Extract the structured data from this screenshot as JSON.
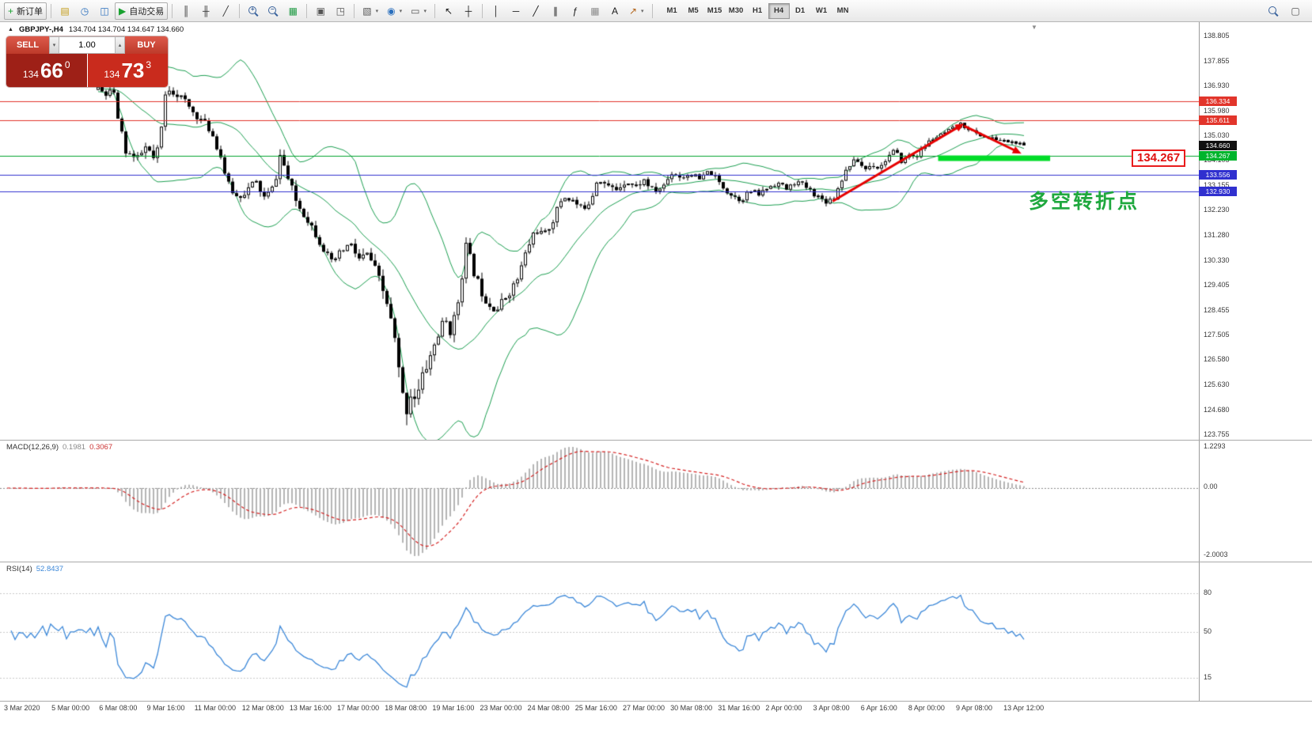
{
  "colors": {
    "resistance_red": "#e2352b",
    "support_blue": "#3030cf",
    "pivot_green": "#00a32c",
    "zone_green": "#00dc28",
    "current_price_tag": "#111111",
    "arrow_red": "#e60000",
    "turning_text_green": "#1fa83e",
    "sell_red_dark": "#9e2017",
    "buy_red_bright": "#c92b1d"
  },
  "toolbar": {
    "items": [
      {
        "name": "new-order-button",
        "type": "labeled",
        "glyph": "+",
        "color": "#18a12f",
        "label": "新订单"
      },
      {
        "type": "sep"
      },
      {
        "name": "profiles-icon",
        "type": "icon",
        "glyph": "▤",
        "color": "#c39b16"
      },
      {
        "name": "market-watch-icon",
        "type": "icon",
        "glyph": "◷",
        "color": "#2a6fbd"
      },
      {
        "name": "data-window-icon",
        "type": "icon",
        "glyph": "◫",
        "color": "#2a6fbd"
      },
      {
        "name": "auto-trading-button",
        "type": "labeled",
        "glyph": "▶",
        "color": "#18a12f",
        "label": "自动交易"
      },
      {
        "type": "sep"
      },
      {
        "name": "bar-chart-icon",
        "type": "icon",
        "glyph": "║",
        "color": "#3a3a3a"
      },
      {
        "name": "candlestick-chart-icon",
        "type": "icon",
        "glyph": "╫",
        "color": "#3a3a3a"
      },
      {
        "name": "line-chart-icon",
        "type": "icon",
        "glyph": "╱",
        "color": "#3a3a3a"
      },
      {
        "type": "sep"
      },
      {
        "name": "zoom-in-button",
        "type": "mag",
        "inner": "+"
      },
      {
        "name": "zoom-out-button",
        "type": "mag",
        "inner": "−"
      },
      {
        "name": "tile-windows-icon",
        "type": "icon",
        "glyph": "▦",
        "color": "#1f9a43"
      },
      {
        "type": "sep"
      },
      {
        "name": "cascade-windows-icon",
        "type": "icon",
        "glyph": "▣",
        "color": "#555555"
      },
      {
        "name": "arrange-windows-icon",
        "type": "icon",
        "glyph": "◳",
        "color": "#555555"
      },
      {
        "type": "sep"
      },
      {
        "name": "new-chart-button",
        "type": "icon-dd",
        "glyph": "▧",
        "color": "#555555"
      },
      {
        "name": "navigator-icon",
        "type": "icon-dd",
        "glyph": "◉",
        "color": "#2a6fbd"
      },
      {
        "name": "snapshot-icon",
        "type": "icon-dd",
        "glyph": "▭",
        "color": "#555555"
      },
      {
        "type": "sep"
      },
      {
        "name": "cursor-icon",
        "type": "icon",
        "glyph": "↖",
        "color": "#1a1a1a"
      },
      {
        "name": "crosshair-icon",
        "type": "icon",
        "glyph": "┼",
        "color": "#1a1a1a"
      },
      {
        "type": "sep"
      },
      {
        "name": "vertical-line-icon",
        "type": "icon",
        "glyph": "│",
        "color": "#1a1a1a"
      },
      {
        "name": "horizontal-line-icon",
        "type": "icon",
        "glyph": "─",
        "color": "#1a1a1a"
      },
      {
        "name": "trendline-icon",
        "type": "icon",
        "glyph": "╱",
        "color": "#1a1a1a"
      },
      {
        "name": "channel-icon",
        "type": "icon",
        "glyph": "∥",
        "color": "#1a1a1a"
      },
      {
        "name": "fibonacci-icon",
        "type": "icon",
        "glyph": "ƒ",
        "color": "#1a1a1a"
      },
      {
        "name": "shapes-icon",
        "type": "icon",
        "glyph": "▦",
        "color": "#8a8a8a"
      },
      {
        "name": "text-label-icon",
        "type": "icon",
        "glyph": "A",
        "color": "#1a1a1a"
      },
      {
        "name": "arrows-tool-icon",
        "type": "icon-dd",
        "glyph": "↗",
        "color": "#b3641a"
      },
      {
        "type": "sep"
      }
    ],
    "timeframes": [
      "M1",
      "M5",
      "M15",
      "M30",
      "H1",
      "H4",
      "D1",
      "W1",
      "MN"
    ],
    "active_timeframe": "H4",
    "right_items": [
      {
        "name": "search-icon",
        "type": "mag",
        "inner": ""
      },
      {
        "name": "layout-icon",
        "type": "icon",
        "glyph": "▢",
        "color": "#555555"
      }
    ]
  },
  "trade_panel": {
    "sell_label": "SELL",
    "buy_label": "BUY",
    "lot_value": "1.00",
    "sell_price": {
      "big_figure": "134",
      "pips": "66",
      "pipette": "0"
    },
    "buy_price": {
      "big_figure": "134",
      "pips": "73",
      "pipette": "3"
    }
  },
  "chart": {
    "symbol_text": "GBPJPY-,H4",
    "ohlc_text": "134.704 134.704 134.647 134.660",
    "annotation_box": "134.267",
    "turning_point_text": "多空转折点",
    "turning_point_color": "#1fa83e",
    "price_axis_labels": [
      "138.805",
      "137.855",
      "136.930",
      "135.980",
      "135.030",
      "134.105",
      "133.155",
      "132.230",
      "131.280",
      "130.330",
      "129.405",
      "128.455",
      "127.505",
      "126.580",
      "125.630",
      "124.680",
      "123.755"
    ],
    "price_tags": [
      {
        "text": "136.334",
        "price": 136.334,
        "bg": "#e2352b"
      },
      {
        "text": "135.611",
        "price": 135.611,
        "bg": "#e2352b"
      },
      {
        "text": "134.660",
        "price": 134.66,
        "bg": "#111111"
      },
      {
        "text": "134.267",
        "price": 134.267,
        "bg": "#00b42c"
      },
      {
        "text": "133.556",
        "price": 133.556,
        "bg": "#3030cf"
      },
      {
        "text": "132.930",
        "price": 132.93,
        "bg": "#3030cf"
      }
    ]
  },
  "macd_panel": {
    "name": "MACD(12,26,9)",
    "main_value": "0.1981",
    "signal_value": "0.3067",
    "scale": {
      "top": "1.2293",
      "zero": "0.00",
      "bottom": "-2.0003"
    }
  },
  "rsi_panel": {
    "name": "RSI(14)",
    "value": "52.8437",
    "levels": [
      "80",
      "50",
      "15"
    ]
  },
  "time_axis": [
    "3 Mar 2020",
    "5 Mar 00:00",
    "6 Mar 08:00",
    "9 Mar 16:00",
    "11 Mar 00:00",
    "12 Mar 08:00",
    "13 Mar 16:00",
    "17 Mar 00:00",
    "18 Mar 08:00",
    "19 Mar 16:00",
    "23 Mar 00:00",
    "24 Mar 08:00",
    "25 Mar 16:00",
    "27 Mar 00:00",
    "30 Mar 08:00",
    "31 Mar 16:00",
    "2 Apr 00:00",
    "3 Apr 08:00",
    "6 Apr 16:00",
    "8 Apr 00:00",
    "9 Apr 08:00",
    "13 Apr 12:00"
  ],
  "chart_data": {
    "type": "candlestick",
    "symbol": "GBPJPY",
    "timeframe": "H4",
    "current_ohlc": {
      "open": 134.704,
      "high": 134.704,
      "low": 134.647,
      "close": 134.66
    },
    "last_close": 134.66,
    "price_range": [
      123.755,
      138.805
    ],
    "candle_count": 235,
    "warmup_candles": 23,
    "close_path": [
      [
        0.0,
        136.8
      ],
      [
        0.008,
        136.55
      ],
      [
        0.016,
        136.75
      ],
      [
        0.022,
        135.6
      ],
      [
        0.03,
        134.45
      ],
      [
        0.042,
        134.1
      ],
      [
        0.052,
        134.6
      ],
      [
        0.062,
        134.0
      ],
      [
        0.068,
        135.2
      ],
      [
        0.074,
        136.9
      ],
      [
        0.082,
        136.7
      ],
      [
        0.092,
        136.4
      ],
      [
        0.1,
        136.0
      ],
      [
        0.112,
        135.6
      ],
      [
        0.122,
        135.2
      ],
      [
        0.132,
        134.3
      ],
      [
        0.14,
        133.2
      ],
      [
        0.15,
        132.7
      ],
      [
        0.16,
        132.95
      ],
      [
        0.17,
        133.3
      ],
      [
        0.18,
        132.65
      ],
      [
        0.19,
        133.1
      ],
      [
        0.197,
        134.35
      ],
      [
        0.205,
        133.4
      ],
      [
        0.215,
        132.45
      ],
      [
        0.228,
        131.8
      ],
      [
        0.24,
        131.0
      ],
      [
        0.252,
        130.2
      ],
      [
        0.262,
        130.6
      ],
      [
        0.272,
        130.95
      ],
      [
        0.282,
        130.35
      ],
      [
        0.292,
        130.55
      ],
      [
        0.302,
        129.7
      ],
      [
        0.312,
        128.7
      ],
      [
        0.32,
        127.4
      ],
      [
        0.326,
        125.8
      ],
      [
        0.332,
        124.55
      ],
      [
        0.338,
        125.4
      ],
      [
        0.344,
        125.1
      ],
      [
        0.352,
        126.1
      ],
      [
        0.36,
        126.8
      ],
      [
        0.368,
        127.6
      ],
      [
        0.375,
        128.05
      ],
      [
        0.382,
        127.6
      ],
      [
        0.39,
        129.0
      ],
      [
        0.397,
        130.9
      ],
      [
        0.404,
        130.1
      ],
      [
        0.412,
        129.3
      ],
      [
        0.422,
        128.7
      ],
      [
        0.432,
        128.5
      ],
      [
        0.442,
        129.05
      ],
      [
        0.452,
        129.5
      ],
      [
        0.462,
        130.6
      ],
      [
        0.472,
        131.5
      ],
      [
        0.482,
        131.25
      ],
      [
        0.492,
        131.9
      ],
      [
        0.502,
        132.75
      ],
      [
        0.512,
        132.6
      ],
      [
        0.522,
        132.25
      ],
      [
        0.532,
        132.6
      ],
      [
        0.54,
        133.5
      ],
      [
        0.55,
        133.1
      ],
      [
        0.56,
        133.0
      ],
      [
        0.57,
        133.35
      ],
      [
        0.58,
        133.1
      ],
      [
        0.59,
        133.35
      ],
      [
        0.6,
        132.9
      ],
      [
        0.61,
        133.1
      ],
      [
        0.62,
        133.65
      ],
      [
        0.63,
        133.45
      ],
      [
        0.64,
        133.6
      ],
      [
        0.65,
        133.35
      ],
      [
        0.66,
        133.7
      ],
      [
        0.672,
        133.2
      ],
      [
        0.682,
        132.85
      ],
      [
        0.694,
        132.6
      ],
      [
        0.704,
        132.95
      ],
      [
        0.714,
        132.8
      ],
      [
        0.724,
        133.1
      ],
      [
        0.734,
        133.25
      ],
      [
        0.744,
        133.0
      ],
      [
        0.754,
        133.3
      ],
      [
        0.764,
        133.1
      ],
      [
        0.775,
        132.8
      ],
      [
        0.785,
        132.55
      ],
      [
        0.795,
        132.7
      ],
      [
        0.805,
        133.55
      ],
      [
        0.812,
        133.95
      ],
      [
        0.82,
        134.1
      ],
      [
        0.828,
        133.75
      ],
      [
        0.836,
        133.95
      ],
      [
        0.844,
        133.8
      ],
      [
        0.852,
        134.2
      ],
      [
        0.86,
        134.45
      ],
      [
        0.868,
        134.05
      ],
      [
        0.876,
        134.3
      ],
      [
        0.884,
        134.25
      ],
      [
        0.892,
        134.6
      ],
      [
        0.9,
        134.9
      ],
      [
        0.908,
        135.0
      ],
      [
        0.916,
        135.15
      ],
      [
        0.924,
        135.3
      ],
      [
        0.932,
        135.45
      ],
      [
        0.94,
        135.3
      ],
      [
        0.948,
        135.1
      ],
      [
        0.956,
        135.0
      ],
      [
        0.964,
        134.92
      ],
      [
        0.972,
        134.88
      ],
      [
        0.98,
        134.82
      ],
      [
        0.988,
        134.78
      ],
      [
        1.0,
        134.66
      ]
    ],
    "vol_path": [
      [
        0.0,
        0.16
      ],
      [
        0.07,
        0.28
      ],
      [
        0.1,
        0.2
      ],
      [
        0.15,
        0.22
      ],
      [
        0.2,
        0.25
      ],
      [
        0.25,
        0.22
      ],
      [
        0.3,
        0.3
      ],
      [
        0.335,
        0.5
      ],
      [
        0.37,
        0.35
      ],
      [
        0.42,
        0.3
      ],
      [
        0.47,
        0.22
      ],
      [
        0.55,
        0.2
      ],
      [
        0.65,
        0.16
      ],
      [
        0.75,
        0.15
      ],
      [
        0.82,
        0.16
      ],
      [
        0.9,
        0.12
      ],
      [
        1.0,
        0.1
      ]
    ],
    "levels": [
      {
        "price": 136.334,
        "color": "#e2352b",
        "width": 1
      },
      {
        "price": 135.611,
        "color": "#e2352b",
        "width": 1
      },
      {
        "price": 134.267,
        "color": "#00a32c",
        "width": 1
      },
      {
        "price": 133.556,
        "color": "#3030cf",
        "width": 1
      },
      {
        "price": 132.93,
        "color": "#3030cf",
        "width": 1
      }
    ],
    "support_zone": {
      "from_frac": 0.909,
      "to_frac": 1.03,
      "price": 134.19,
      "thickness": 7,
      "color": "#00dc28"
    },
    "trend_arrows": [
      {
        "from": [
          0.795,
          132.55
        ],
        "to": [
          0.937,
          135.48
        ],
        "color": "#e60000"
      },
      {
        "from": [
          0.937,
          135.4
        ],
        "to": [
          0.999,
          134.35
        ],
        "color": "#e60000"
      }
    ],
    "indicators": {
      "bollinger": {
        "period": 20,
        "deviation": 2,
        "color": "#1b9e50"
      },
      "macd": {
        "fast": 12,
        "slow": 26,
        "signal": 9,
        "hist_color": "#b5b5b5",
        "signal_color": "#d42222"
      },
      "rsi": {
        "period": 14,
        "color": "#3b87d8"
      }
    }
  }
}
